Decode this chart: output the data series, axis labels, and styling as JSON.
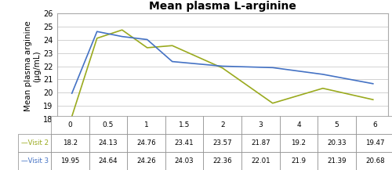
{
  "title": "Mean plasma L-arginine",
  "title_fontsize": 10,
  "ylabel": "Mean plasma arginine\n(µg/mL)",
  "ylabel_fontsize": 7.5,
  "x_values": [
    0,
    0.5,
    1,
    1.5,
    2,
    3,
    4,
    5,
    6
  ],
  "visit2_values": [
    18.2,
    24.13,
    24.76,
    23.41,
    23.57,
    21.87,
    19.2,
    20.33,
    19.47
  ],
  "visit3_values": [
    19.95,
    24.64,
    24.26,
    24.03,
    22.36,
    22.01,
    21.9,
    21.39,
    20.68
  ],
  "visit2_color": "#9aaa1e",
  "visit3_color": "#4472c4",
  "visit2_label": "Visit 2",
  "visit3_label": "Visit 3",
  "ylim": [
    18,
    26
  ],
  "yticks": [
    18,
    19,
    20,
    21,
    22,
    23,
    24,
    25,
    26
  ],
  "xtick_labels": [
    "0",
    "0.5",
    "1",
    "1.5",
    "2",
    "3",
    "4",
    "5",
    "6"
  ],
  "table_visit2": [
    "18.2",
    "24.13",
    "24.76",
    "23.41",
    "23.57",
    "21.87",
    "19.2",
    "20.33",
    "19.47"
  ],
  "table_visit3": [
    "19.95",
    "24.64",
    "24.26",
    "24.03",
    "22.36",
    "22.01",
    "21.9",
    "21.39",
    "20.68"
  ],
  "grid_color": "#c0c0c0",
  "background_color": "#ffffff",
  "chart_border_color": "#aaaaaa"
}
